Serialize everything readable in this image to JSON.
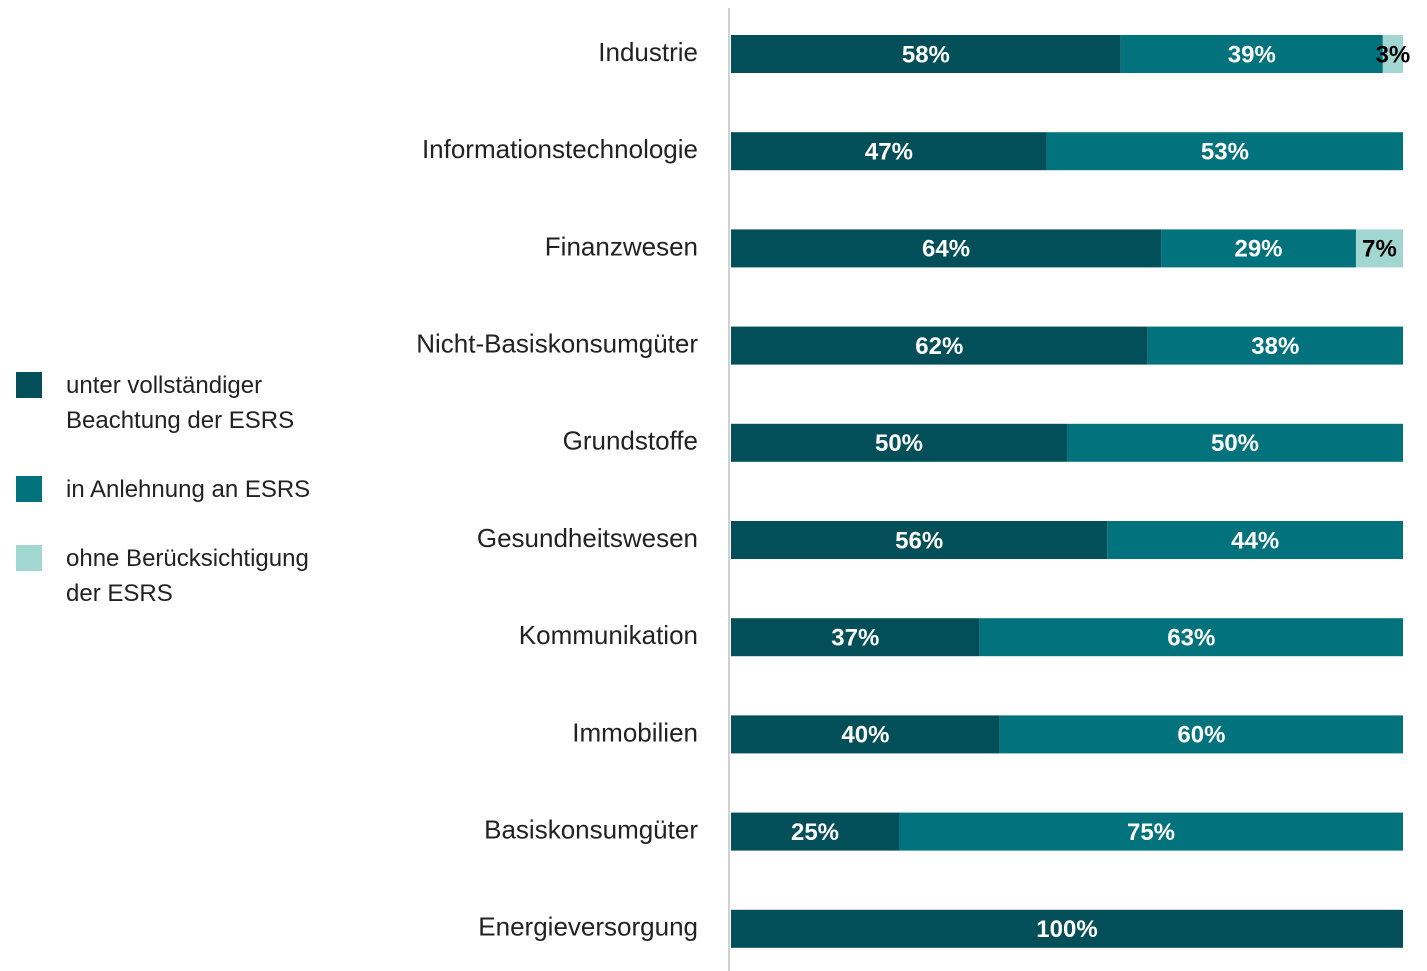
{
  "chart_data": {
    "type": "stacked_barh",
    "categories": [
      "Industrie",
      "Informationstechnologie",
      "Finanzwesen",
      "Nicht-Basiskonsumgüter",
      "Grundstoffe",
      "Gesundheitswesen",
      "Kommunikation",
      "Immobilien",
      "Basiskonsumgüter",
      "Energieversorgung"
    ],
    "series": [
      {
        "name": "unter vollständiger Beachtung der ESRS",
        "color": "#034f59",
        "label_color": "#ffffff",
        "values": [
          58,
          47,
          64,
          62,
          50,
          56,
          37,
          40,
          25,
          100
        ],
        "value_labels": [
          "58%",
          "47%",
          "64%",
          "62%",
          "50%",
          "56%",
          "37%",
          "40%",
          "25%",
          "100%"
        ]
      },
      {
        "name": "in Anlehnung an ESRS",
        "color": "#02727c",
        "label_color": "#ffffff",
        "values": [
          39,
          53,
          29,
          38,
          50,
          44,
          63,
          60,
          75,
          0
        ],
        "value_labels": [
          "39%",
          "53%",
          "29%",
          "38%",
          "50%",
          "44%",
          "63%",
          "60%",
          "75%",
          null
        ]
      },
      {
        "name": "ohne Berücksichtigung der ESRS",
        "color": "#a2d6d1",
        "label_color": "#000000",
        "values": [
          3,
          0,
          7,
          0,
          0,
          0,
          0,
          0,
          0,
          0
        ],
        "value_labels": [
          "3%",
          null,
          "7%",
          null,
          null,
          null,
          null,
          null,
          null,
          null
        ]
      }
    ],
    "legend": "left"
  }
}
